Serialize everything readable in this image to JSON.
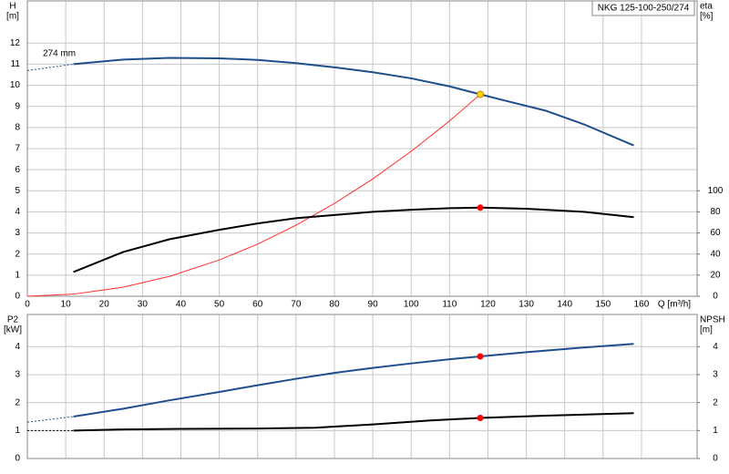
{
  "chart_data": [
    {
      "type": "line",
      "title": "NKG 125-100-250/274",
      "ylabel": "H",
      "yunit": "[m]",
      "y2label": "eta",
      "y2unit": "[%]",
      "xlabel": "Q [m³/h]",
      "annotations": [
        "274 mm"
      ],
      "xlim": [
        0,
        174.5
      ],
      "xticks": [
        0,
        10,
        20,
        30,
        40,
        50,
        60,
        70,
        80,
        90,
        100,
        110,
        120,
        130,
        140,
        150,
        160
      ],
      "xtick_labels": true,
      "ylim": [
        0,
        14
      ],
      "yticks": [
        0,
        1,
        2,
        3,
        4,
        5,
        6,
        7,
        8,
        9,
        10,
        11,
        12
      ],
      "y2lim": [
        0,
        280
      ],
      "y2ticks": [
        0,
        20,
        40,
        60,
        80,
        100
      ],
      "grid": true,
      "series": [
        {
          "color": "#1f4e8c",
          "style": "dashed",
          "x": [
            0,
            12
          ],
          "values": [
            10.7,
            11.0
          ]
        },
        {
          "color": "#1f4e8c",
          "style": "solid",
          "x": [
            12,
            25,
            37,
            50,
            60,
            70,
            80,
            90,
            100,
            110,
            118,
            125,
            135,
            145,
            158
          ],
          "values": [
            11.0,
            11.22,
            11.3,
            11.28,
            11.2,
            11.05,
            10.85,
            10.62,
            10.33,
            9.95,
            9.57,
            9.25,
            8.8,
            8.15,
            7.15
          ]
        },
        {
          "color": "#ff3030",
          "style": "thin",
          "x": [
            0,
            12,
            25,
            37,
            50,
            60,
            70,
            80,
            90,
            100,
            110,
            118
          ],
          "values": [
            0,
            0.1,
            0.43,
            0.94,
            1.72,
            2.47,
            3.37,
            4.4,
            5.56,
            6.87,
            8.31,
            9.57
          ]
        },
        {
          "color": "#000000",
          "style": "solid",
          "axis": "y2",
          "x": [
            12,
            25,
            37,
            50,
            60,
            70,
            80,
            90,
            100,
            110,
            118,
            130,
            145,
            158
          ],
          "values": [
            23,
            42,
            54,
            63,
            69,
            74,
            77,
            80,
            82,
            83.5,
            84,
            83,
            80,
            75
          ]
        }
      ],
      "points": [
        {
          "x": 118,
          "y": 9.57,
          "color": "#ffd700",
          "axis": "y"
        },
        {
          "x": 118,
          "y": 84,
          "color": "#ff0000",
          "axis": "y2"
        }
      ]
    },
    {
      "type": "line",
      "ylabel": "P2",
      "yunit": "[kW]",
      "y2label": "NPSH",
      "y2unit": "[m]",
      "xlim": [
        0,
        174.5
      ],
      "xticks": [
        0,
        10,
        20,
        30,
        40,
        50,
        60,
        70,
        80,
        90,
        100,
        110,
        120,
        130,
        140,
        150,
        160
      ],
      "xtick_labels": false,
      "ylim": [
        0,
        5.15
      ],
      "yticks": [
        0,
        1,
        2,
        3,
        4
      ],
      "y2lim": [
        0,
        5.15
      ],
      "y2ticks": [
        0,
        1,
        2,
        3,
        4
      ],
      "grid": true,
      "series": [
        {
          "color": "#1f4e8c",
          "style": "dashed",
          "x": [
            0,
            12
          ],
          "values": [
            1.3,
            1.5
          ]
        },
        {
          "color": "#1f4e8c",
          "style": "solid",
          "x": [
            12,
            25,
            37,
            50,
            60,
            70,
            80,
            90,
            100,
            110,
            118,
            130,
            145,
            158
          ],
          "values": [
            1.5,
            1.78,
            2.08,
            2.38,
            2.62,
            2.85,
            3.06,
            3.24,
            3.4,
            3.55,
            3.65,
            3.8,
            3.97,
            4.1
          ]
        },
        {
          "color": "#000000",
          "style": "dashed",
          "axis": "y2",
          "x": [
            0,
            12
          ],
          "values": [
            1.0,
            1.0
          ]
        },
        {
          "color": "#000000",
          "style": "solid",
          "axis": "y2",
          "x": [
            12,
            25,
            40,
            60,
            75,
            90,
            105,
            118,
            135,
            158
          ],
          "values": [
            1.0,
            1.04,
            1.06,
            1.07,
            1.1,
            1.22,
            1.36,
            1.45,
            1.53,
            1.62
          ]
        }
      ],
      "points": [
        {
          "x": 118,
          "y": 3.65,
          "color": "#ff0000",
          "axis": "y"
        },
        {
          "x": 118,
          "y": 1.45,
          "color": "#ff0000",
          "axis": "y2"
        }
      ]
    }
  ]
}
